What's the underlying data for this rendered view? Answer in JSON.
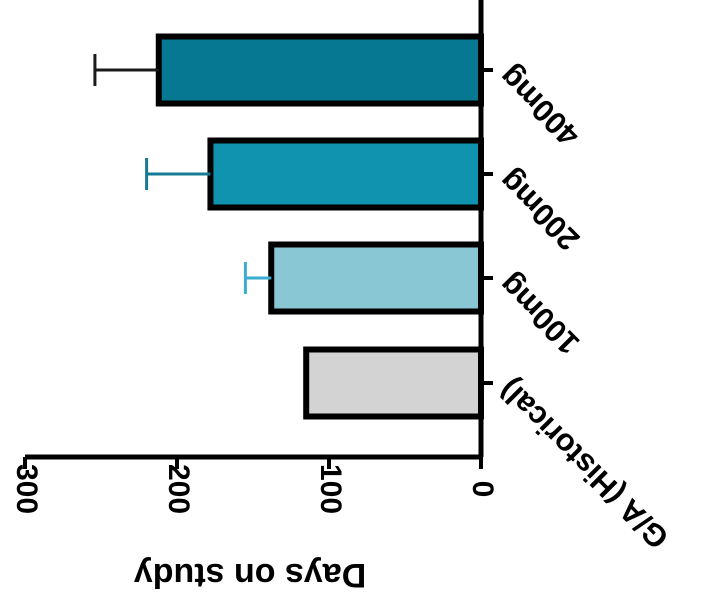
{
  "chart_data": {
    "type": "bar",
    "orientation": "horizontal",
    "rendered_rotation_degrees": 180,
    "title": "",
    "xlabel": "Days on study",
    "ylabel": "",
    "xlim": [
      0,
      300
    ],
    "xticks": [
      "0",
      "100",
      "200",
      "300"
    ],
    "categories": [
      "G/A (Historical)",
      "100mg",
      "200mg",
      "400mg"
    ],
    "values": [
      115,
      138,
      178,
      212
    ],
    "errors": [
      0,
      17,
      42,
      42
    ],
    "colors": [
      "#d3d3d3",
      "#8ac7d5",
      "#1093ae",
      "#067891"
    ],
    "error_colors": [
      "#000000",
      "#3aaed0",
      "#157a94",
      "#1a1a1a"
    ],
    "grid": false,
    "legend": "none"
  }
}
